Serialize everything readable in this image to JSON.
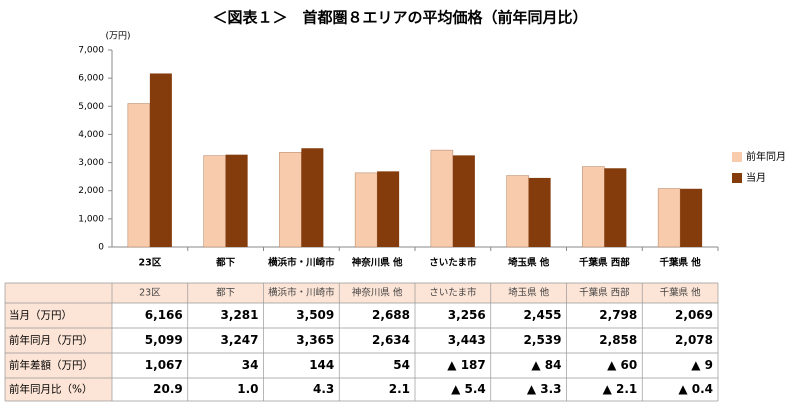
{
  "chart_data": {
    "type": "bar",
    "title": "＜図表１＞　首都圏８エリアの平均価格（前年同月比）",
    "y_label": "(万円)",
    "categories": [
      "23区",
      "都下",
      "横浜市・川崎市",
      "神奈川県 他",
      "さいたま市",
      "埼玉県 他",
      "千葉県 西部",
      "千葉県 他"
    ],
    "series": [
      {
        "name": "前年同月",
        "color": "#f8cbad",
        "values": [
          5099,
          3247,
          3365,
          2634,
          3443,
          2539,
          2858,
          2078
        ]
      },
      {
        "name": "当月",
        "color": "#843c0c",
        "values": [
          6166,
          3281,
          3509,
          2688,
          3256,
          2455,
          2798,
          2069
        ]
      }
    ],
    "ylim": [
      0,
      7000
    ],
    "yticks": [
      0,
      {
        "value": 1000,
        "label": "1,000"
      },
      {
        "value": 2000,
        "label": "2,000"
      },
      {
        "value": 3000,
        "label": "3,000"
      },
      {
        "value": 4000,
        "label": "4,000"
      },
      {
        "value": 5000,
        "label": "5,000"
      },
      {
        "value": 6000,
        "label": "6,000"
      },
      {
        "value": 7000,
        "label": "7,000"
      }
    ],
    "grid": false,
    "legend": "right"
  },
  "table": {
    "rows": [
      {
        "label": "当月（万円）",
        "cells": [
          "6,166",
          "3,281",
          "3,509",
          "2,688",
          "3,256",
          "2,455",
          "2,798",
          "2,069"
        ]
      },
      {
        "label": "前年同月（万円）",
        "cells": [
          "5,099",
          "3,247",
          "3,365",
          "2,634",
          "3,443",
          "2,539",
          "2,858",
          "2,078"
        ]
      },
      {
        "label": "前年差額（万円）",
        "cells": [
          "1,067",
          "34",
          "144",
          "54",
          "▲ 187",
          "▲ 84",
          "▲ 60",
          "▲ 9"
        ]
      },
      {
        "label": "前年同月比（%）",
        "cells": [
          "20.9",
          "1.0",
          "4.3",
          "2.1",
          "▲ 5.4",
          "▲ 3.3",
          "▲ 2.1",
          "▲ 0.4"
        ]
      }
    ]
  }
}
